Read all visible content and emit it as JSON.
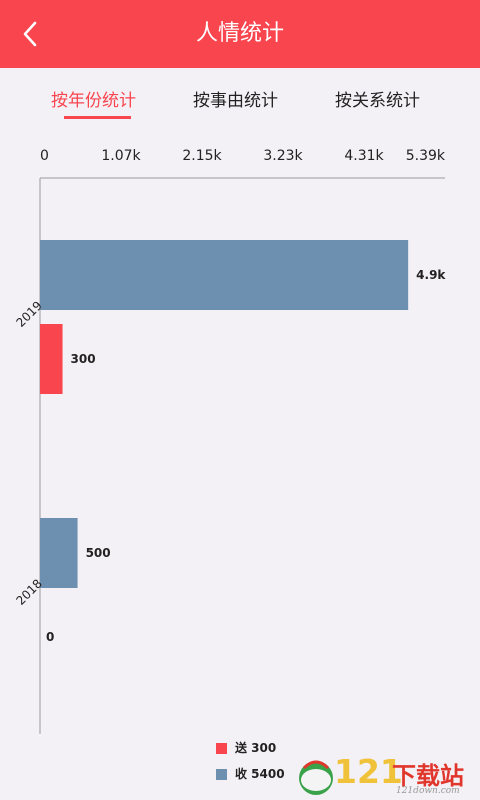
{
  "header": {
    "title": "人情统计"
  },
  "tabs": [
    {
      "label": "按年份统计",
      "active": true
    },
    {
      "label": "按事由统计",
      "active": false
    },
    {
      "label": "按关系统计",
      "active": false
    }
  ],
  "colors": {
    "accent": "#f8454e",
    "send": "#f8454e",
    "receive": "#6d8fb0"
  },
  "chart_data": {
    "type": "bar",
    "orientation": "horizontal",
    "categories": [
      "2019",
      "2018"
    ],
    "series": [
      {
        "name": "收",
        "values": [
          4900,
          500
        ],
        "labels": [
          "4.9k",
          "500"
        ],
        "color": "#6d8fb0"
      },
      {
        "name": "送",
        "values": [
          300,
          0
        ],
        "labels": [
          "300",
          "0"
        ],
        "color": "#f8454e"
      }
    ],
    "xlim": [
      0,
      5390
    ],
    "xticks": [
      "0",
      "1.07k",
      "2.15k",
      "3.23k",
      "4.31k",
      "5.39k"
    ],
    "xaxis_position": "top",
    "grid": false,
    "legend_position": "bottom"
  },
  "legend": [
    {
      "label": "送 300",
      "color": "#f8454e"
    },
    {
      "label": "收 5400",
      "color": "#6d8fb0"
    }
  ],
  "watermark": {
    "number": "121",
    "text": "下载站",
    "url": "121down.com"
  }
}
